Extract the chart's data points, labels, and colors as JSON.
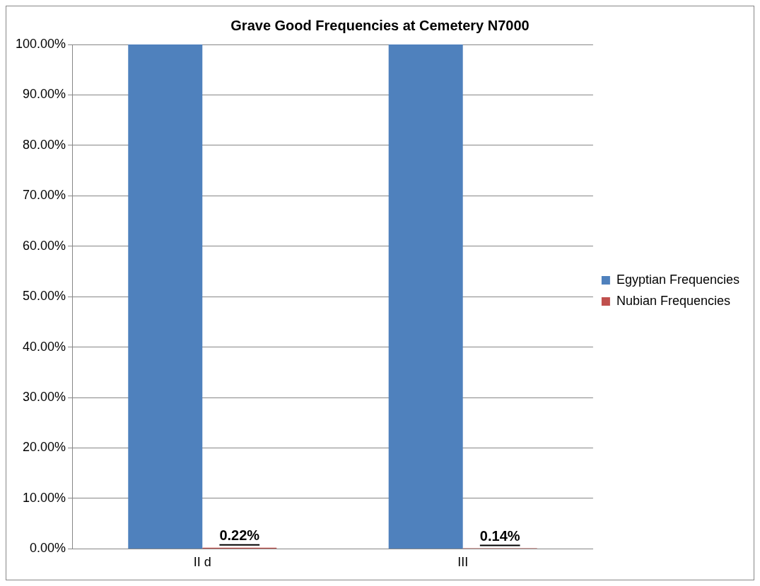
{
  "chart_data": {
    "type": "bar",
    "title": "Grave Good Frequencies at Cemetery N7000",
    "categories": [
      "II d",
      "III"
    ],
    "series": [
      {
        "name": "Egyptian Frequencies",
        "color": "#4f81bd",
        "values": [
          100,
          100
        ]
      },
      {
        "name": "Nubian Frequencies",
        "color": "#c0504d",
        "values": [
          0.22,
          0.14
        ],
        "value_labels": [
          "0.22%",
          "0.14%"
        ]
      }
    ],
    "ylim": [
      0,
      100
    ],
    "yticks": [
      {
        "value": 0,
        "label": "0.00%"
      },
      {
        "value": 10,
        "label": "10.00%"
      },
      {
        "value": 20,
        "label": "20.00%"
      },
      {
        "value": 30,
        "label": "30.00%"
      },
      {
        "value": 40,
        "label": "40.00%"
      },
      {
        "value": 50,
        "label": "50.00%"
      },
      {
        "value": 60,
        "label": "60.00%"
      },
      {
        "value": 70,
        "label": "70.00%"
      },
      {
        "value": 80,
        "label": "80.00%"
      },
      {
        "value": 90,
        "label": "90.00%"
      },
      {
        "value": 100,
        "label": "100.00%"
      }
    ],
    "grid": "y",
    "legend": "right"
  }
}
